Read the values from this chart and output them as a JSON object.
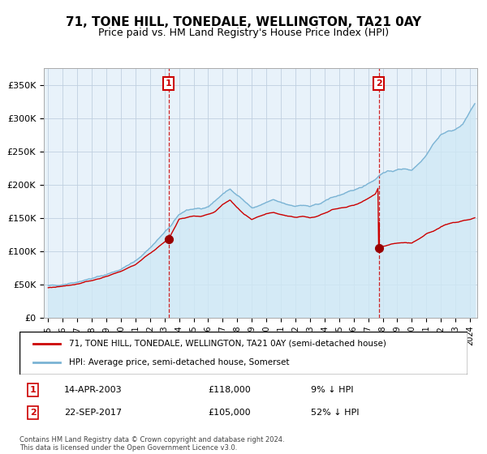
{
  "title": "71, TONE HILL, TONEDALE, WELLINGTON, TA21 0AY",
  "subtitle": "Price paid vs. HM Land Registry's House Price Index (HPI)",
  "title_fontsize": 11,
  "subtitle_fontsize": 9,
  "ylabel_ticks": [
    "£0",
    "£50K",
    "£100K",
    "£150K",
    "£200K",
    "£250K",
    "£300K",
    "£350K"
  ],
  "ytick_values": [
    0,
    50000,
    100000,
    150000,
    200000,
    250000,
    300000,
    350000
  ],
  "ylim": [
    0,
    375000
  ],
  "x_start_year": 1995,
  "x_end_year": 2024,
  "hpi_color": "#7ab3d4",
  "hpi_fill_color": "#d0e8f5",
  "price_color": "#cc0000",
  "marker_color": "#990000",
  "dashed_line_color": "#cc0000",
  "grid_color": "#c0d0e0",
  "plot_bg_color": "#e8f2fa",
  "transaction1_date": "14-APR-2003",
  "transaction1_price": 118000,
  "transaction1_year": 2003.28,
  "transaction2_date": "22-SEP-2017",
  "transaction2_price": 105000,
  "transaction2_year": 2017.72,
  "legend_line1": "71, TONE HILL, TONEDALE, WELLINGTON, TA21 0AY (semi-detached house)",
  "legend_line2": "HPI: Average price, semi-detached house, Somerset",
  "table_row1_num": "1",
  "table_row1_date": "14-APR-2003",
  "table_row1_price": "£118,000",
  "table_row1_hpi": "9% ↓ HPI",
  "table_row2_num": "2",
  "table_row2_date": "22-SEP-2017",
  "table_row2_price": "£105,000",
  "table_row2_hpi": "52% ↓ HPI",
  "footnote": "Contains HM Land Registry data © Crown copyright and database right 2024.\nThis data is licensed under the Open Government Licence v3.0."
}
